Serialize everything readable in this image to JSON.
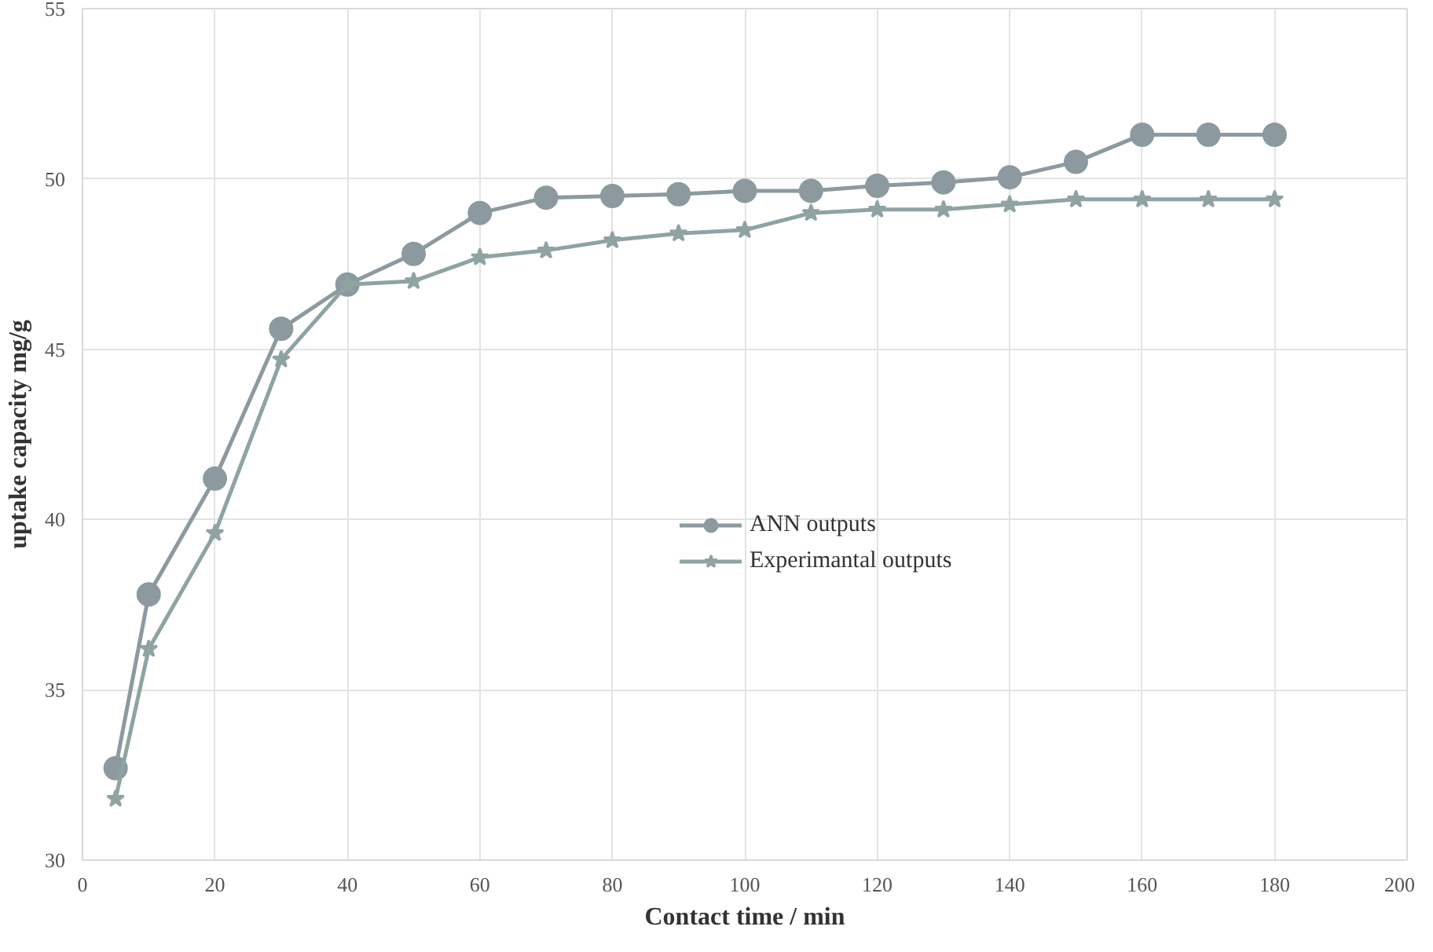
{
  "chart_data": {
    "type": "line",
    "xlabel": "Contact time / min",
    "ylabel": "uptake capacity mg/g",
    "x": [
      5,
      10,
      20,
      30,
      40,
      50,
      60,
      70,
      80,
      90,
      100,
      110,
      120,
      130,
      140,
      150,
      160,
      170,
      180
    ],
    "series": [
      {
        "name": "ANN outputs",
        "color": "#8c9aa0",
        "marker": "circle",
        "values": [
          32.7,
          37.8,
          41.2,
          45.6,
          46.9,
          47.8,
          49.0,
          49.45,
          49.5,
          49.55,
          49.65,
          49.65,
          49.8,
          49.9,
          50.05,
          50.5,
          51.3,
          51.3,
          51.3
        ]
      },
      {
        "name": "Experimantal outputs",
        "color": "#8fa3a3",
        "marker": "star",
        "values": [
          31.8,
          36.2,
          39.6,
          44.7,
          46.9,
          47.0,
          47.7,
          47.9,
          48.2,
          48.4,
          48.5,
          49.0,
          49.1,
          49.1,
          49.25,
          49.4,
          49.4,
          49.4,
          49.4
        ]
      }
    ],
    "xlim": [
      0,
      200
    ],
    "xticks": [
      0,
      20,
      40,
      60,
      80,
      100,
      120,
      140,
      160,
      180,
      200
    ],
    "ylim": [
      30,
      55
    ],
    "yticks": [
      30,
      35,
      40,
      45,
      50,
      55
    ],
    "grid": true,
    "legend": "center right",
    "line_style": "solid"
  }
}
